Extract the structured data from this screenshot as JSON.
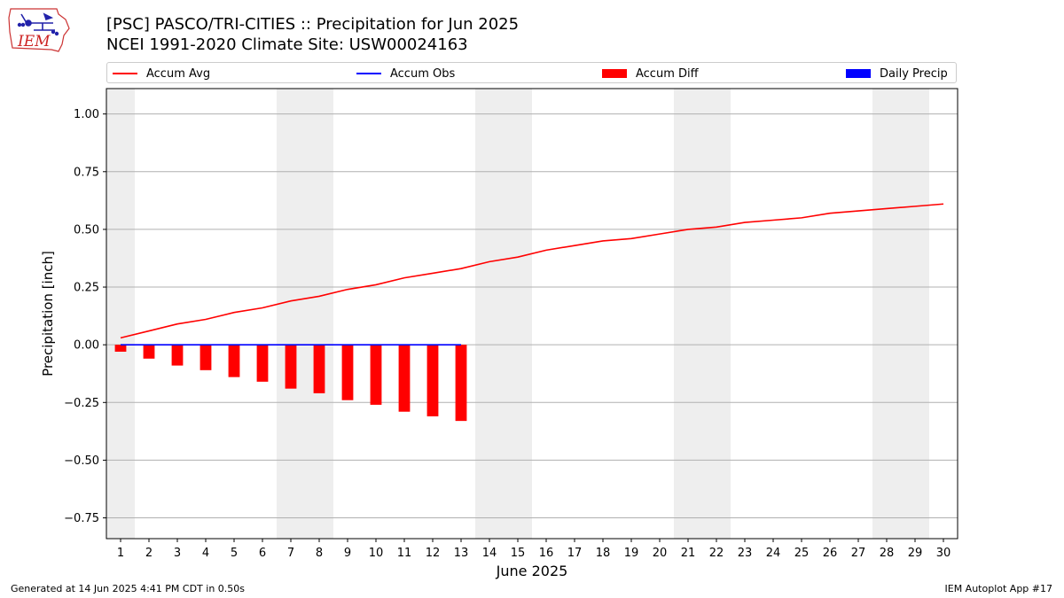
{
  "header": {
    "title_line1": "[PSC] PASCO/TRI-CITIES :: Precipitation for Jun 2025",
    "title_line2": "NCEI 1991-2020 Climate Site: USW00024163",
    "logo_text": "IEM"
  },
  "legend": {
    "items": [
      {
        "label": "Accum Avg",
        "kind": "line",
        "color": "#ff0000"
      },
      {
        "label": "Accum Obs",
        "kind": "line",
        "color": "#0000ff"
      },
      {
        "label": "Accum Diff",
        "kind": "box",
        "color": "#ff0000"
      },
      {
        "label": "Daily Precip",
        "kind": "box",
        "color": "#0000ff"
      }
    ]
  },
  "footer": {
    "generated": "Generated at 14 Jun 2025 4:41 PM CDT in 0.50s",
    "app": "IEM Autoplot App #17"
  },
  "chart_data": {
    "type": "line",
    "title": "[PSC] PASCO/TRI-CITIES :: Precipitation for Jun 2025",
    "subtitle": "NCEI 1991-2020 Climate Site: USW00024163",
    "xlabel": "June 2025",
    "ylabel": "Precipitation [inch]",
    "xlim": [
      0.5,
      30.5
    ],
    "ylim": [
      -0.84,
      1.11
    ],
    "x": [
      1,
      2,
      3,
      4,
      5,
      6,
      7,
      8,
      9,
      10,
      11,
      12,
      13,
      14,
      15,
      16,
      17,
      18,
      19,
      20,
      21,
      22,
      23,
      24,
      25,
      26,
      27,
      28,
      29,
      30
    ],
    "xticks": [
      "1",
      "2",
      "3",
      "4",
      "5",
      "6",
      "7",
      "8",
      "9",
      "10",
      "11",
      "12",
      "13",
      "14",
      "15",
      "16",
      "17",
      "18",
      "19",
      "20",
      "21",
      "22",
      "23",
      "24",
      "25",
      "26",
      "27",
      "28",
      "29",
      "30"
    ],
    "yticks": [
      -0.75,
      -0.5,
      -0.25,
      0.0,
      0.25,
      0.5,
      0.75,
      1.0
    ],
    "ytick_labels": [
      "−0.75",
      "−0.50",
      "−0.25",
      "0.00",
      "0.25",
      "0.50",
      "0.75",
      "1.00"
    ],
    "grid": "horizontal",
    "legend_position": "top",
    "weekend_days": [
      1,
      7,
      8,
      14,
      15,
      21,
      22,
      28,
      29
    ],
    "series": [
      {
        "name": "Accum Avg",
        "kind": "line",
        "color": "#ff0000",
        "x": [
          1,
          2,
          3,
          4,
          5,
          6,
          7,
          8,
          9,
          10,
          11,
          12,
          13,
          14,
          15,
          16,
          17,
          18,
          19,
          20,
          21,
          22,
          23,
          24,
          25,
          26,
          27,
          28,
          29,
          30
        ],
        "values": [
          0.03,
          0.06,
          0.09,
          0.11,
          0.14,
          0.16,
          0.19,
          0.21,
          0.24,
          0.26,
          0.29,
          0.31,
          0.33,
          0.36,
          0.38,
          0.41,
          0.43,
          0.45,
          0.46,
          0.48,
          0.5,
          0.51,
          0.53,
          0.54,
          0.55,
          0.57,
          0.58,
          0.59,
          0.6,
          0.61
        ]
      },
      {
        "name": "Accum Obs",
        "kind": "line",
        "color": "#0000ff",
        "x": [
          1,
          2,
          3,
          4,
          5,
          6,
          7,
          8,
          9,
          10,
          11,
          12,
          13
        ],
        "values": [
          0,
          0,
          0,
          0,
          0,
          0,
          0,
          0,
          0,
          0,
          0,
          0,
          0
        ]
      },
      {
        "name": "Accum Diff",
        "kind": "bar",
        "color": "#ff0000",
        "x": [
          1,
          2,
          3,
          4,
          5,
          6,
          7,
          8,
          9,
          10,
          11,
          12,
          13
        ],
        "values": [
          -0.03,
          -0.06,
          -0.09,
          -0.11,
          -0.14,
          -0.16,
          -0.19,
          -0.21,
          -0.24,
          -0.26,
          -0.29,
          -0.31,
          -0.33
        ]
      },
      {
        "name": "Daily Precip",
        "kind": "bar",
        "color": "#0000ff",
        "x": [
          1,
          2,
          3,
          4,
          5,
          6,
          7,
          8,
          9,
          10,
          11,
          12,
          13
        ],
        "values": [
          0,
          0,
          0,
          0,
          0,
          0,
          0,
          0,
          0,
          0,
          0,
          0,
          0
        ]
      }
    ]
  }
}
